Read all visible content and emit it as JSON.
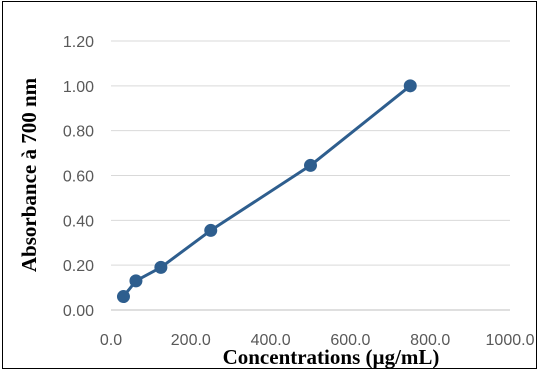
{
  "chart_data": {
    "type": "line",
    "title": "",
    "xlabel": "Concentrations (µg/mL)",
    "ylabel": "Absorbance à 700 nm",
    "xlim": [
      0,
      1000
    ],
    "ylim": [
      0,
      1.2
    ],
    "x_ticks": [
      "0.0",
      "200.0",
      "400.0",
      "600.0",
      "800.0",
      "1000.0"
    ],
    "y_ticks": [
      "0.00",
      "0.20",
      "0.40",
      "0.60",
      "0.80",
      "1.00",
      "1.20"
    ],
    "grid": true,
    "legend": "none",
    "colors": {
      "series": "#2E5E8E",
      "grid": "#D9D9D9",
      "ticks": "#595959"
    },
    "series": [
      {
        "x": [
          31.25,
          62.5,
          125,
          250,
          500,
          750
        ],
        "y": [
          0.06,
          0.13,
          0.19,
          0.355,
          0.645,
          1.0
        ]
      }
    ]
  }
}
